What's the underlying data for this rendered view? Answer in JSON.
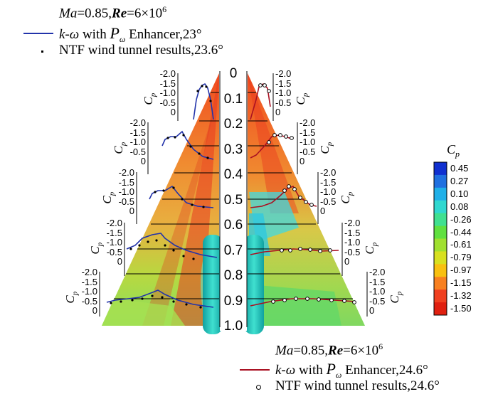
{
  "legend_top": {
    "condition": {
      "ma": "Ma",
      "ma_val": "=0.85,",
      "re": "Re",
      "re_val": "=6×10",
      "exp": "6"
    },
    "line_entry": {
      "kw": "k-ω",
      "mid": " with ",
      "p": "P",
      "sub": "ω",
      "tail": " Enhancer,23°"
    },
    "dot_entry": "NTF wind tunnel results,23.6°"
  },
  "legend_bottom": {
    "condition": {
      "ma": "Ma",
      "ma_val": "=0.85,",
      "re": "Re",
      "re_val": "=6×10",
      "exp": "6"
    },
    "line_entry": {
      "kw": "k-ω",
      "mid": " with ",
      "p": "P",
      "sub": "ω",
      "tail": " Enhancer,24.6°"
    },
    "dot_entry": "NTF wind tunnel results,24.6°"
  },
  "colorbar": {
    "title": "C",
    "title_sub": "p",
    "levels": [
      "0.45",
      "0.27",
      "0.10",
      "0.08",
      "-0.26",
      "-0.44",
      "-0.61",
      "-0.79",
      "-0.97",
      "-1.15",
      "-1.32",
      "-1.50"
    ],
    "colors": [
      "#1030d0",
      "#2070e0",
      "#20b0e8",
      "#30d8d0",
      "#40e090",
      "#60e040",
      "#a0e030",
      "#d8e020",
      "#f8c010",
      "#f88020",
      "#f04020",
      "#e02010"
    ]
  },
  "stations": [
    "0",
    "0.1",
    "0.2",
    "0.3",
    "0.4",
    "0.5",
    "0.6",
    "0.7",
    "0.8",
    "0.9",
    "1.0"
  ],
  "axis": {
    "label": "C",
    "sub": "p",
    "ticks": [
      "-2.0",
      "-1.5",
      "-1.0",
      "-0.5",
      "0"
    ]
  },
  "colors": {
    "left_line": "#2233aa",
    "right_line": "#aa1122"
  }
}
